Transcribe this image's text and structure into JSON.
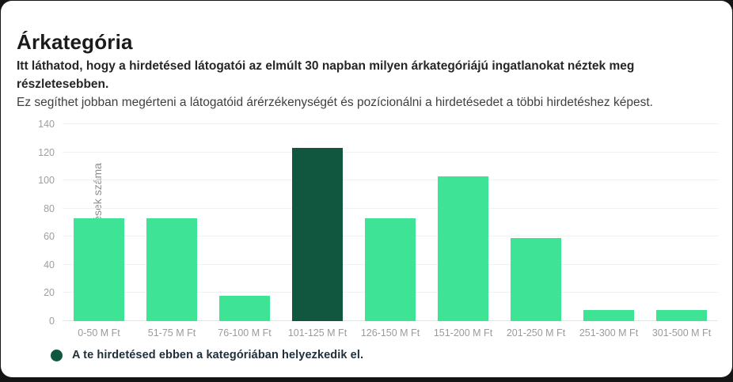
{
  "header": {
    "title": "Árkategória",
    "description_bold": "Itt láthatod, hogy a hirdetésed látogatói az elmúlt 30 napban milyen árkategóriájú ingatlanokat néztek meg részletesebben.",
    "description_regular": "Ez segíthet jobban megérteni a látogatóid árérzékenységét és pozícionálni a hirdetésedet a többi hirdetéshez képest."
  },
  "chart_data": {
    "type": "bar",
    "categories": [
      "0-50 M Ft",
      "51-75 M Ft",
      "76-100 M Ft",
      "101-125 M Ft",
      "126-150 M Ft",
      "151-200 M Ft",
      "201-250 M Ft",
      "251-300 M Ft",
      "301-500 M Ft"
    ],
    "values": [
      73,
      73,
      18,
      123,
      73,
      103,
      59,
      8,
      8
    ],
    "highlighted_index": 3,
    "highlighted_category": "101-125 M Ft",
    "title": "Árkategória",
    "xlabel": "",
    "ylabel": "Megtekintett hirdetések száma",
    "ylim": [
      0,
      140
    ],
    "yticks": [
      0,
      20,
      40,
      60,
      80,
      100,
      120,
      140
    ],
    "grid": true,
    "legend_position": "bottom-left",
    "colors": {
      "bar": "#3ee396",
      "highlight": "#115740",
      "gridline": "#f1f1f1",
      "axis_text": "#9e9e9e"
    }
  },
  "legend": {
    "label": "A te hirdetésed ebben a kategóriában helyezkedik el.",
    "dot_color": "#115740"
  }
}
